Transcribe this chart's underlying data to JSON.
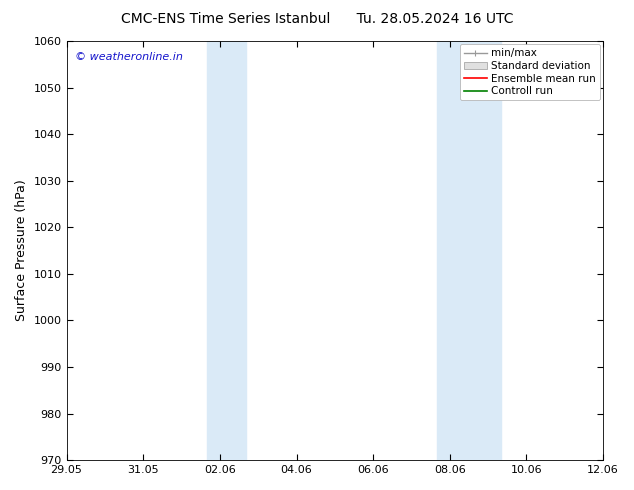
{
  "title": "CMC-ENS Time Series Istanbul",
  "title_right": "Tu. 28.05.2024 16 UTC",
  "ylabel": "Surface Pressure (hPa)",
  "ylim": [
    970,
    1060
  ],
  "yticks": [
    970,
    980,
    990,
    1000,
    1010,
    1020,
    1030,
    1040,
    1050,
    1060
  ],
  "xlim": [
    0,
    14
  ],
  "xtick_labels": [
    "29.05",
    "31.05",
    "02.06",
    "04.06",
    "06.06",
    "08.06",
    "10.06",
    "12.06"
  ],
  "xtick_positions_days": [
    0,
    2,
    4,
    6,
    8,
    10,
    12,
    14
  ],
  "shaded_bands": [
    {
      "start_day": 3.67,
      "end_day": 4.67
    },
    {
      "start_day": 9.67,
      "end_day": 11.33
    }
  ],
  "shade_color": "#daeaf7",
  "watermark": "© weatheronline.in",
  "watermark_color": "#1515cc",
  "legend_labels": [
    "min/max",
    "Standard deviation",
    "Ensemble mean run",
    "Controll run"
  ],
  "legend_line_color": "#999999",
  "legend_patch_color": "#e0e0e0",
  "legend_red": "#ff0000",
  "legend_green": "#008000",
  "bg_color": "#ffffff",
  "border_color": "#000000",
  "title_fontsize": 10,
  "ylabel_fontsize": 9,
  "tick_fontsize": 8,
  "legend_fontsize": 7.5
}
